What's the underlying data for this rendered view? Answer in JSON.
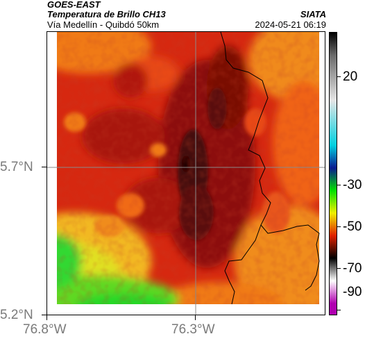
{
  "header": {
    "satellite": "GOES-EAST",
    "product": "Temperatura de Brillo CH13",
    "region": "Vía Medellín - Quibdó 50km",
    "agency": "SIATA",
    "timestamp": "2024-05-21 06:19"
  },
  "map": {
    "latitude_labels": [
      "5.7°N",
      "5.2°N"
    ],
    "longitude_labels": [
      "76.8°W",
      "76.3°W"
    ],
    "palette": {
      "cold_core": "#3a0605",
      "dark_red": "#7a0b08",
      "red": "#c0180c",
      "orange_red": "#e43a10",
      "orange": "#f06a18",
      "amber": "#f59a20",
      "yellow": "#e8e020",
      "green": "#28d828",
      "gridline": "#8a8a8a",
      "border": "#000000"
    }
  },
  "colorbar": {
    "unit_hint": "°C",
    "tick_labels": [
      "20",
      "-30",
      "-50",
      "-70",
      "-90"
    ],
    "stops": [
      {
        "value": 30,
        "color": "#000000"
      },
      {
        "value": 20,
        "color": "#6a6a6a"
      },
      {
        "value": 0,
        "color": "#e6e6e6"
      },
      {
        "value": -20,
        "color": "#00d0e0"
      },
      {
        "value": -30,
        "color": "#0a1a90"
      },
      {
        "value": -40,
        "color": "#00e000"
      },
      {
        "value": -50,
        "color": "#f0f000"
      },
      {
        "value": -60,
        "color": "#e02000"
      },
      {
        "value": -70,
        "color": "#000000"
      },
      {
        "value": -80,
        "color": "#ffffff"
      },
      {
        "value": -90,
        "color": "#b000b0"
      }
    ]
  }
}
